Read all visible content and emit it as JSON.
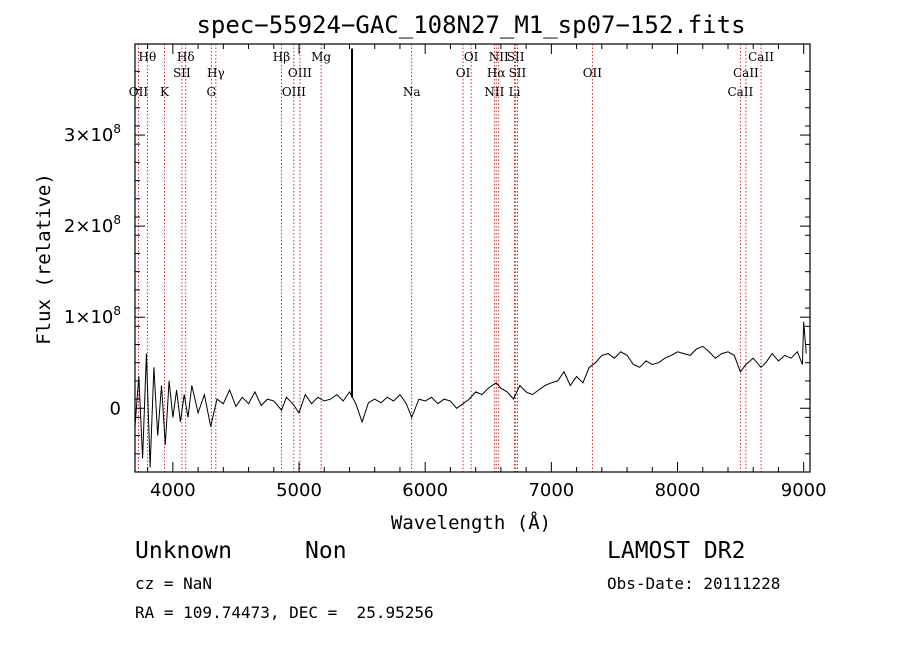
{
  "chart_data": {
    "type": "line",
    "title": "spec−55924−GAC_108N27_M1_sp07−152.fits",
    "xlabel": "Wavelength (Å)",
    "ylabel": "Flux (relative)",
    "xlim": [
      3700,
      9050
    ],
    "ylim": [
      -70000000,
      400000000
    ],
    "x_ticks": [
      4000,
      5000,
      6000,
      7000,
      8000,
      9000
    ],
    "x_tick_labels": [
      "4000",
      "5000",
      "6000",
      "7000",
      "8000",
      "9000"
    ],
    "y_ticks": [
      0,
      100000000,
      200000000,
      300000000
    ],
    "y_tick_labels": [
      {
        "mant": "0",
        "exp": ""
      },
      {
        "mant": "1×10",
        "exp": "8"
      },
      {
        "mant": "2×10",
        "exp": "8"
      },
      {
        "mant": "3×10",
        "exp": "8"
      }
    ],
    "grid": false,
    "series": [
      {
        "color": "#000000",
        "x": [
          3700,
          3730,
          3760,
          3790,
          3820,
          3850,
          3880,
          3910,
          3940,
          3970,
          4000,
          4030,
          4060,
          4090,
          4120,
          4150,
          4200,
          4250,
          4300,
          4350,
          4400,
          4450,
          4500,
          4550,
          4600,
          4650,
          4700,
          4750,
          4800,
          4861,
          4900,
          4950,
          5000,
          5050,
          5100,
          5150,
          5200,
          5250,
          5300,
          5350,
          5400,
          5450,
          5500,
          5550,
          5600,
          5650,
          5700,
          5750,
          5800,
          5850,
          5893,
          5950,
          6000,
          6050,
          6100,
          6150,
          6200,
          6250,
          6300,
          6350,
          6400,
          6450,
          6500,
          6563,
          6600,
          6650,
          6700,
          6750,
          6800,
          6850,
          6900,
          6950,
          7000,
          7050,
          7100,
          7150,
          7200,
          7250,
          7300,
          7350,
          7400,
          7450,
          7500,
          7550,
          7600,
          7650,
          7700,
          7750,
          7800,
          7850,
          7900,
          7950,
          8000,
          8050,
          8100,
          8150,
          8200,
          8250,
          8300,
          8350,
          8400,
          8450,
          8498,
          8542,
          8600,
          8662,
          8700,
          8750,
          8800,
          8850,
          8900,
          8950,
          8990,
          9000,
          9020
        ],
        "y": [
          -20,
          35,
          -55,
          60,
          -65,
          45,
          -30,
          25,
          -40,
          30,
          -10,
          20,
          -15,
          15,
          -10,
          25,
          -5,
          15,
          -20,
          10,
          5,
          20,
          2,
          12,
          5,
          18,
          3,
          10,
          8,
          -2,
          12,
          5,
          -5,
          15,
          5,
          12,
          8,
          10,
          15,
          8,
          18,
          5,
          -15,
          6,
          10,
          6,
          12,
          8,
          15,
          5,
          -10,
          10,
          8,
          12,
          5,
          10,
          8,
          0,
          5,
          10,
          18,
          15,
          22,
          28,
          22,
          18,
          10,
          25,
          18,
          15,
          20,
          25,
          28,
          30,
          40,
          25,
          35,
          28,
          45,
          50,
          58,
          60,
          55,
          62,
          58,
          48,
          45,
          52,
          48,
          50,
          55,
          58,
          62,
          60,
          58,
          65,
          68,
          62,
          55,
          60,
          62,
          58,
          40,
          48,
          55,
          45,
          50,
          60,
          52,
          58,
          55,
          62,
          48,
          95,
          60
        ]
      }
    ],
    "spike": {
      "x": 5420,
      "y_top": 395,
      "y_bottom": 12
    },
    "lines": [
      {
        "label": "Hθ",
        "x": 3798,
        "row": 1
      },
      {
        "label": "OII",
        "x": 3727,
        "row": 3
      },
      {
        "label": "K",
        "x": 3934,
        "row": 3
      },
      {
        "label": "Hδ",
        "x": 4102,
        "row": 1
      },
      {
        "label": "SII",
        "x": 4072,
        "row": 2
      },
      {
        "label": "Hγ",
        "x": 4341,
        "row": 2
      },
      {
        "label": "G",
        "x": 4305,
        "row": 3
      },
      {
        "label": "Hβ",
        "x": 4861,
        "row": 1
      },
      {
        "label": "OIII",
        "x": 5007,
        "row": 2
      },
      {
        "label": "OIII",
        "x": 4959,
        "row": 3
      },
      {
        "label": "Mg",
        "x": 5175,
        "row": 1
      },
      {
        "label": "Na",
        "x": 5893,
        "row": 3
      },
      {
        "label": "OI",
        "x": 6364,
        "row": 1
      },
      {
        "label": "OI",
        "x": 6300,
        "row": 2
      },
      {
        "label": "NII",
        "x": 6548,
        "row": 3
      },
      {
        "label": "NII",
        "x": 6583,
        "row": 1
      },
      {
        "label": "Hα",
        "x": 6563,
        "row": 2
      },
      {
        "label": "SII",
        "x": 6717,
        "row": 1
      },
      {
        "label": "SII",
        "x": 6731,
        "row": 2
      },
      {
        "label": "Li",
        "x": 6708,
        "row": 3
      },
      {
        "label": "OII",
        "x": 7325,
        "row": 2
      },
      {
        "label": "CaII",
        "x": 8662,
        "row": 1
      },
      {
        "label": "CaII",
        "x": 8542,
        "row": 2
      },
      {
        "label": "CaII",
        "x": 8498,
        "row": 3
      }
    ]
  },
  "info": {
    "object": "Unknown",
    "class": "Non",
    "cz": "cz = NaN",
    "radec": "RA = 109.74473, DEC =  25.95256",
    "survey": "LAMOST DR2",
    "obsdate": "Obs-Date: 20111228"
  }
}
